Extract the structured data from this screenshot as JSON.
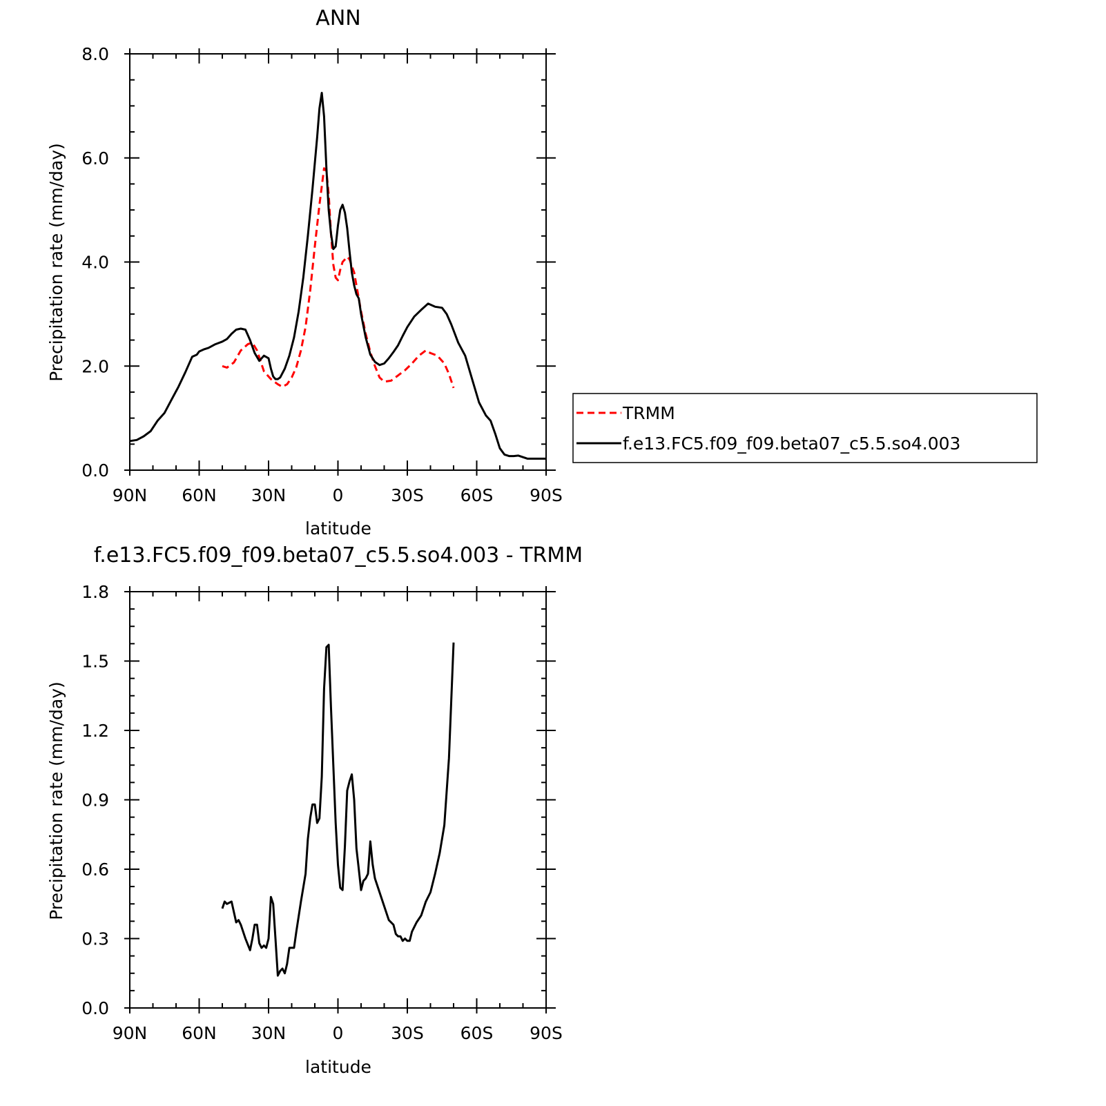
{
  "colors": {
    "trmm": "#ff0000",
    "model": "#000000",
    "axis": "#000000"
  },
  "chart_data": [
    {
      "type": "line",
      "title": "ANN",
      "xlabel": "latitude",
      "ylabel": "Precipitation rate (mm/day)",
      "xlim": [
        90,
        -90
      ],
      "ylim": [
        0,
        8
      ],
      "x_ticks": [
        90,
        60,
        30,
        0,
        -30,
        -60,
        -90
      ],
      "x_tick_labels": [
        "90N",
        "60N",
        "30N",
        "0",
        "30S",
        "60S",
        "90S"
      ],
      "y_ticks": [
        0,
        2,
        4,
        6,
        8
      ],
      "y_tick_labels": [
        "0.0",
        "2.0",
        "4.0",
        "6.0",
        "8.0"
      ],
      "legend": {
        "placement": "right",
        "entries": [
          "TRMM",
          "f.e13.FC5.f09_f09.beta07_c5.5.so4.003"
        ]
      },
      "series": [
        {
          "name": "TRMM",
          "style": "dashed",
          "color": "#ff0000",
          "x": [
            50,
            48,
            45,
            42,
            39,
            37,
            35,
            32,
            29,
            26,
            24,
            22,
            20,
            18,
            16,
            14,
            12,
            10,
            8,
            6,
            5,
            4,
            3,
            2,
            1,
            0,
            -1,
            -2,
            -3,
            -4,
            -5,
            -6,
            -7,
            -8,
            -10,
            -12,
            -14,
            -16,
            -18,
            -20,
            -23,
            -26,
            -29,
            -32,
            -35,
            -38,
            -40,
            -43,
            -46,
            -48,
            -50
          ],
          "y": [
            2.0,
            1.97,
            2.07,
            2.3,
            2.42,
            2.45,
            2.3,
            1.9,
            1.75,
            1.65,
            1.6,
            1.65,
            1.78,
            1.98,
            2.3,
            2.75,
            3.45,
            4.3,
            5.1,
            5.8,
            5.75,
            5.3,
            4.55,
            3.95,
            3.7,
            3.65,
            3.85,
            4.0,
            4.05,
            4.1,
            4.05,
            3.92,
            3.8,
            3.55,
            3.05,
            2.62,
            2.27,
            2.0,
            1.78,
            1.7,
            1.72,
            1.82,
            1.92,
            2.05,
            2.2,
            2.3,
            2.25,
            2.2,
            2.05,
            1.85,
            1.58
          ]
        },
        {
          "name": "f.e13.FC5.f09_f09.beta07_c5.5.so4.003",
          "style": "solid",
          "color": "#000000",
          "x": [
            90,
            87,
            84,
            81,
            78,
            75,
            72,
            69,
            66,
            63,
            61,
            60,
            58,
            56,
            53,
            50,
            48,
            46,
            44,
            42,
            40,
            38,
            36,
            34,
            32,
            30,
            29,
            28,
            27,
            26,
            25,
            23,
            21,
            19,
            17,
            15,
            13,
            11,
            9,
            8,
            7,
            6,
            5,
            4,
            3,
            2,
            1,
            0,
            -1,
            -2,
            -3,
            -4,
            -5,
            -6,
            -7,
            -8,
            -9,
            -10,
            -12,
            -14,
            -16,
            -18,
            -20,
            -22,
            -24,
            -26,
            -28,
            -30,
            -33,
            -36,
            -39,
            -42,
            -45,
            -47,
            -49,
            -52,
            -55,
            -58,
            -61,
            -64,
            -66,
            -68,
            -70,
            -72,
            -74,
            -76,
            -78,
            -80,
            -82,
            -84,
            -86,
            -88,
            -90
          ],
          "y": [
            0.56,
            0.58,
            0.65,
            0.75,
            0.95,
            1.1,
            1.35,
            1.6,
            1.88,
            2.18,
            2.22,
            2.28,
            2.32,
            2.35,
            2.42,
            2.47,
            2.52,
            2.62,
            2.7,
            2.72,
            2.7,
            2.5,
            2.25,
            2.1,
            2.2,
            2.15,
            1.95,
            1.8,
            1.75,
            1.75,
            1.78,
            1.95,
            2.2,
            2.55,
            3.05,
            3.7,
            4.5,
            5.4,
            6.4,
            6.95,
            7.25,
            6.8,
            5.8,
            5.0,
            4.55,
            4.25,
            4.3,
            4.7,
            5.0,
            5.1,
            4.95,
            4.65,
            4.2,
            3.8,
            3.55,
            3.38,
            3.3,
            3.0,
            2.55,
            2.22,
            2.08,
            2.02,
            2.05,
            2.15,
            2.27,
            2.4,
            2.58,
            2.75,
            2.95,
            3.08,
            3.2,
            3.14,
            3.12,
            3.0,
            2.8,
            2.45,
            2.2,
            1.75,
            1.3,
            1.05,
            0.95,
            0.7,
            0.42,
            0.3,
            0.27,
            0.27,
            0.28,
            0.25,
            0.22,
            0.22,
            0.22,
            0.22,
            0.22
          ]
        }
      ]
    },
    {
      "type": "line",
      "title": "f.e13.FC5.f09_f09.beta07_c5.5.so4.003 - TRMM",
      "xlabel": "latitude",
      "ylabel": "Precipitation rate (mm/day)",
      "xlim": [
        90,
        -90
      ],
      "ylim": [
        0,
        1.8
      ],
      "x_ticks": [
        90,
        60,
        30,
        0,
        -30,
        -60,
        -90
      ],
      "x_tick_labels": [
        "90N",
        "60N",
        "30N",
        "0",
        "30S",
        "60S",
        "90S"
      ],
      "y_ticks": [
        0,
        0.3,
        0.6,
        0.9,
        1.2,
        1.5,
        1.8
      ],
      "y_tick_labels": [
        "0.0",
        "0.3",
        "0.6",
        "0.9",
        "1.2",
        "1.5",
        "1.8"
      ],
      "series": [
        {
          "style": "solid",
          "color": "#000000",
          "x": [
            50,
            49,
            48,
            46,
            44,
            43,
            42,
            40,
            38,
            37,
            36,
            35,
            34,
            33,
            32,
            31,
            30,
            29,
            28,
            27,
            26,
            25,
            24,
            23,
            22,
            21,
            20,
            19,
            18,
            16,
            14,
            13,
            12,
            11,
            10,
            9,
            8,
            7,
            6,
            5,
            4,
            3,
            2,
            1,
            0,
            -1,
            -2,
            -3,
            -4,
            -5,
            -6,
            -7,
            -8,
            -9,
            -10,
            -11,
            -12,
            -13,
            -14,
            -15,
            -16,
            -18,
            -20,
            -22,
            -24,
            -25,
            -26,
            -27,
            -28,
            -29,
            -30,
            -31,
            -32,
            -33,
            -34,
            -36,
            -38,
            -40,
            -42,
            -44,
            -46,
            -48,
            -50
          ],
          "y": [
            0.43,
            0.46,
            0.45,
            0.46,
            0.37,
            0.38,
            0.36,
            0.3,
            0.25,
            0.3,
            0.36,
            0.36,
            0.28,
            0.26,
            0.27,
            0.26,
            0.3,
            0.48,
            0.45,
            0.3,
            0.14,
            0.16,
            0.17,
            0.15,
            0.19,
            0.26,
            0.26,
            0.26,
            0.33,
            0.46,
            0.58,
            0.73,
            0.82,
            0.88,
            0.88,
            0.8,
            0.82,
            1.0,
            1.38,
            1.56,
            1.57,
            1.3,
            1.05,
            0.8,
            0.62,
            0.52,
            0.51,
            0.7,
            0.94,
            0.98,
            1.01,
            0.9,
            0.69,
            0.6,
            0.51,
            0.55,
            0.56,
            0.58,
            0.72,
            0.62,
            0.56,
            0.5,
            0.44,
            0.38,
            0.36,
            0.32,
            0.31,
            0.31,
            0.29,
            0.3,
            0.29,
            0.29,
            0.33,
            0.35,
            0.37,
            0.4,
            0.46,
            0.5,
            0.58,
            0.67,
            0.79,
            1.08,
            1.58
          ]
        }
      ]
    }
  ]
}
